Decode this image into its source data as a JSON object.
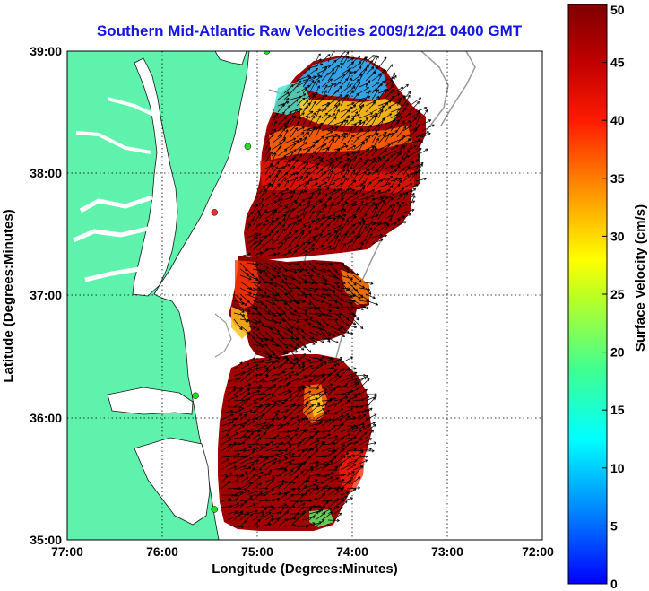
{
  "title": "Southern Mid-Atlantic Raw Velocities 2009/12/21 0400 GMT",
  "axes": {
    "xlabel": "Longitude (Degrees:Minutes)",
    "ylabel": "Latitude (Degrees:Minutes)",
    "xticks": [
      "77:00",
      "76:00",
      "75:00",
      "74:00",
      "73:00",
      "72:00"
    ],
    "yticks": [
      "35:00",
      "36:00",
      "37:00",
      "38:00",
      "39:00"
    ]
  },
  "colorbar": {
    "label": "Surface Velocity (cm/s)",
    "ticks": [
      "0",
      "5",
      "10",
      "15",
      "20",
      "25",
      "30",
      "35",
      "40",
      "45",
      "50"
    ]
  },
  "colors": {
    "land": "#5ef2ad",
    "water": "#ffffff",
    "title": "#1414e6",
    "station": "#22dd22",
    "station_alt": "#e63030"
  },
  "chart_data": {
    "type": "heatmap",
    "title": "Southern Mid-Atlantic Raw Velocities 2009/12/21 0400 GMT",
    "xlabel": "Longitude (Degrees:Minutes)",
    "ylabel": "Latitude (Degrees:Minutes)",
    "colorbar_label": "Surface Velocity (cm/s)",
    "xlim": [
      -77,
      -72
    ],
    "ylim": [
      35,
      39
    ],
    "clim": [
      0,
      50
    ],
    "grid": true,
    "stations": [
      {
        "lon": -74.9,
        "lat": 39.0,
        "color": "#22dd22"
      },
      {
        "lon": -75.1,
        "lat": 38.22,
        "color": "#22dd22"
      },
      {
        "lon": -75.45,
        "lat": 37.68,
        "color": "#e63030"
      },
      {
        "lon": -75.65,
        "lat": 36.18,
        "color": "#22dd22"
      },
      {
        "lon": -75.45,
        "lat": 35.25,
        "color": "#22dd22"
      }
    ]
  }
}
